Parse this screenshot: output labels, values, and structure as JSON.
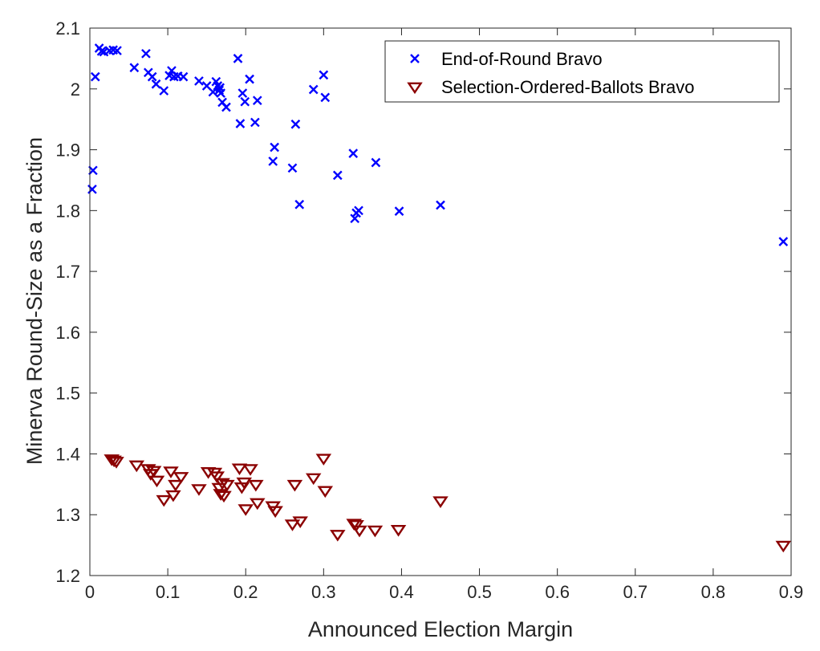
{
  "chart_data": {
    "type": "scatter",
    "xlabel": "Announced Election Margin",
    "ylabel": "Minerva Round-Size as a Fraction",
    "xlim": [
      0,
      0.9
    ],
    "ylim": [
      1.2,
      2.1
    ],
    "xticks": [
      "0",
      "0.1",
      "0.2",
      "0.3",
      "0.4",
      "0.5",
      "0.6",
      "0.7",
      "0.8",
      "0.9"
    ],
    "yticks": [
      "1.2",
      "1.3",
      "1.4",
      "1.5",
      "1.6",
      "1.7",
      "1.8",
      "1.9",
      "2",
      "2.1"
    ],
    "grid": false,
    "legend_position": "top-right",
    "series": [
      {
        "name": "End-of-Round Bravo",
        "marker": "x",
        "color": "#0000ff",
        "points": [
          [
            0.003,
            1.835
          ],
          [
            0.004,
            1.866
          ],
          [
            0.007,
            2.02
          ],
          [
            0.012,
            2.067
          ],
          [
            0.015,
            2.062
          ],
          [
            0.018,
            2.061
          ],
          [
            0.025,
            2.063
          ],
          [
            0.03,
            2.064
          ],
          [
            0.035,
            2.063
          ],
          [
            0.057,
            2.035
          ],
          [
            0.072,
            2.058
          ],
          [
            0.075,
            2.027
          ],
          [
            0.08,
            2.02
          ],
          [
            0.085,
            2.008
          ],
          [
            0.095,
            1.997
          ],
          [
            0.102,
            2.022
          ],
          [
            0.105,
            2.03
          ],
          [
            0.108,
            2.02
          ],
          [
            0.113,
            2.021
          ],
          [
            0.12,
            2.02
          ],
          [
            0.14,
            2.013
          ],
          [
            0.15,
            2.005
          ],
          [
            0.158,
            1.995
          ],
          [
            0.162,
            2.012
          ],
          [
            0.164,
            2.005
          ],
          [
            0.166,
            1.998
          ],
          [
            0.167,
            2.002
          ],
          [
            0.168,
            1.993
          ],
          [
            0.17,
            1.978
          ],
          [
            0.175,
            1.97
          ],
          [
            0.19,
            2.05
          ],
          [
            0.193,
            1.943
          ],
          [
            0.196,
            1.993
          ],
          [
            0.199,
            1.979
          ],
          [
            0.205,
            2.016
          ],
          [
            0.212,
            1.945
          ],
          [
            0.215,
            1.981
          ],
          [
            0.235,
            1.881
          ],
          [
            0.237,
            1.904
          ],
          [
            0.26,
            1.87
          ],
          [
            0.264,
            1.942
          ],
          [
            0.269,
            1.81
          ],
          [
            0.287,
            1.999
          ],
          [
            0.3,
            2.023
          ],
          [
            0.302,
            1.986
          ],
          [
            0.318,
            1.858
          ],
          [
            0.338,
            1.894
          ],
          [
            0.34,
            1.787
          ],
          [
            0.342,
            1.796
          ],
          [
            0.345,
            1.8
          ],
          [
            0.367,
            1.879
          ],
          [
            0.397,
            1.799
          ],
          [
            0.45,
            1.809
          ],
          [
            0.89,
            1.749
          ]
        ]
      },
      {
        "name": "Selection-Ordered-Ballots Bravo",
        "marker": "triangle-down",
        "color": "#8b0000",
        "points": [
          [
            0.028,
            1.392
          ],
          [
            0.031,
            1.39
          ],
          [
            0.034,
            1.388
          ],
          [
            0.06,
            1.382
          ],
          [
            0.075,
            1.376
          ],
          [
            0.078,
            1.368
          ],
          [
            0.082,
            1.373
          ],
          [
            0.086,
            1.357
          ],
          [
            0.095,
            1.325
          ],
          [
            0.104,
            1.372
          ],
          [
            0.107,
            1.333
          ],
          [
            0.11,
            1.35
          ],
          [
            0.117,
            1.363
          ],
          [
            0.14,
            1.343
          ],
          [
            0.152,
            1.371
          ],
          [
            0.16,
            1.37
          ],
          [
            0.163,
            1.364
          ],
          [
            0.166,
            1.345
          ],
          [
            0.168,
            1.335
          ],
          [
            0.17,
            1.353
          ],
          [
            0.172,
            1.332
          ],
          [
            0.176,
            1.35
          ],
          [
            0.192,
            1.377
          ],
          [
            0.195,
            1.346
          ],
          [
            0.198,
            1.354
          ],
          [
            0.2,
            1.31
          ],
          [
            0.206,
            1.376
          ],
          [
            0.213,
            1.35
          ],
          [
            0.215,
            1.32
          ],
          [
            0.235,
            1.315
          ],
          [
            0.238,
            1.307
          ],
          [
            0.26,
            1.285
          ],
          [
            0.263,
            1.35
          ],
          [
            0.27,
            1.29
          ],
          [
            0.287,
            1.361
          ],
          [
            0.3,
            1.393
          ],
          [
            0.302,
            1.34
          ],
          [
            0.318,
            1.268
          ],
          [
            0.339,
            1.286
          ],
          [
            0.342,
            1.284
          ],
          [
            0.346,
            1.275
          ],
          [
            0.366,
            1.275
          ],
          [
            0.396,
            1.276
          ],
          [
            0.45,
            1.323
          ],
          [
            0.89,
            1.25
          ]
        ]
      }
    ]
  }
}
